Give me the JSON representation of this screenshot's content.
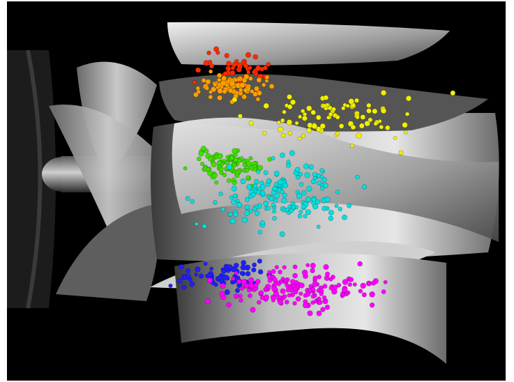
{
  "image": {
    "description_free": true,
    "background_color": "#000000",
    "surface_colors": {
      "metal_light": "#d8d8d8",
      "metal_mid": "#8c8c8c",
      "metal_dark": "#2e2e2e"
    },
    "particle_groups": [
      {
        "color": "#ff2a00"
      },
      {
        "color": "#ffa000"
      },
      {
        "color": "#f0f000"
      },
      {
        "color": "#40e000"
      },
      {
        "color": "#00e0e0"
      },
      {
        "color": "#2020ff"
      },
      {
        "color": "#ff00ff"
      }
    ]
  }
}
